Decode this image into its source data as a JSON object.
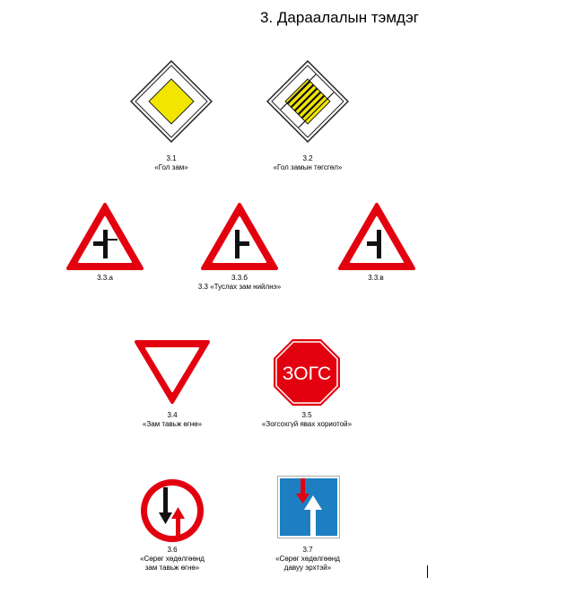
{
  "page": {
    "title": "3. Дараалалын тэмдэг"
  },
  "signs": {
    "s31": {
      "number": "3.1",
      "label": "«Гол зам»"
    },
    "s32": {
      "number": "3.2",
      "label": "«Гол замын төгсгөл»"
    },
    "s33a": {
      "number": "3.3.а"
    },
    "s33b": {
      "number": "3.3.б",
      "label": "3.3 «Туслах зам нийлнэ»"
    },
    "s33v": {
      "number": "3.3.в"
    },
    "s34": {
      "number": "3.4",
      "label": "«Зам тавьж өгнө»"
    },
    "s35": {
      "number": "3.5",
      "label": "«Зогсохгүй явах хориотой»",
      "sign_text": "ЗОГС"
    },
    "s36": {
      "number": "3.6",
      "label_line1": "«Сөрөг хөдөлгөөнд",
      "label_line2": "зам тавьж өгнө»"
    },
    "s37": {
      "number": "3.7",
      "label_line1": "«Сөрөг хөдөлгөөнд",
      "label_line2": "давуу эрхтэй»"
    }
  },
  "colors": {
    "red": "#e3000f",
    "yellow": "#f2e600",
    "blue": "#1d7fc1",
    "black": "#111111",
    "white": "#ffffff"
  }
}
